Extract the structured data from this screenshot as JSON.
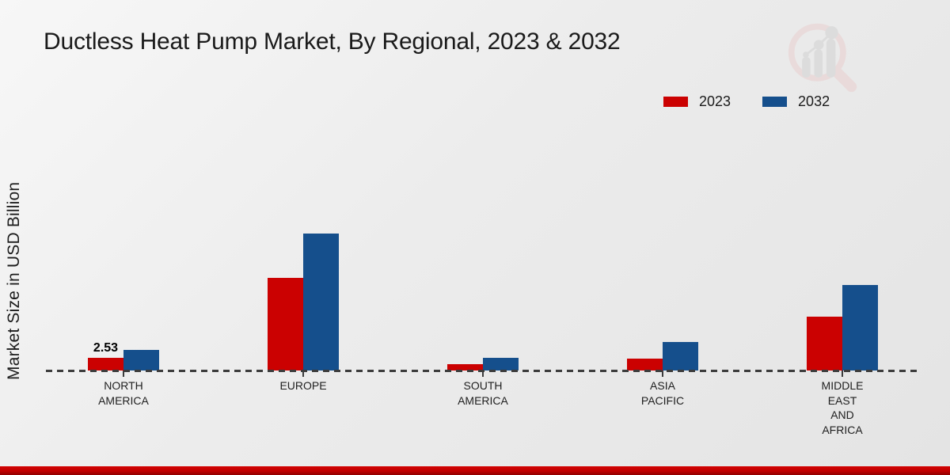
{
  "title": "Ductless Heat Pump Market, By Regional, 2023 & 2032",
  "y_axis_label": "Market Size in USD Billion",
  "legend": {
    "items": [
      {
        "label": "2023",
        "color": "#cb0101"
      },
      {
        "label": "2032",
        "color": "#154f8c"
      }
    ]
  },
  "colors": {
    "series_2023": "#cb0101",
    "series_2032": "#154f8c",
    "background": "#ececec",
    "footer_bar": "#c00000",
    "baseline": "#3c3c3c",
    "text": "#1b1b1b",
    "logo_ring": "#e9cfcf",
    "logo_bars": "#d2d2d2"
  },
  "chart_data": {
    "type": "bar",
    "title": "Ductless Heat Pump Market, By Regional, 2023 & 2032",
    "xlabel": "",
    "ylabel": "Market Size in USD Billion",
    "unit": "USD Billion",
    "categories": [
      "NORTH AMERICA",
      "EUROPE",
      "SOUTH AMERICA",
      "ASIA PACIFIC",
      "MIDDLE EAST AND AFRICA"
    ],
    "category_label_lines": [
      [
        "NORTH",
        "AMERICA"
      ],
      [
        "EUROPE"
      ],
      [
        "SOUTH",
        "AMERICA"
      ],
      [
        "ASIA",
        "PACIFIC"
      ],
      [
        "MIDDLE",
        "EAST",
        "AND",
        "AFRICA"
      ]
    ],
    "series": [
      {
        "name": "2023",
        "color": "#cb0101",
        "values": [
          2.53,
          18.5,
          1.3,
          2.4,
          10.8
        ]
      },
      {
        "name": "2032",
        "color": "#154f8c",
        "values": [
          4.1,
          27.3,
          2.5,
          5.7,
          17.1
        ]
      }
    ],
    "annotations": [
      {
        "series": "2023",
        "category": "NORTH AMERICA",
        "category_index": 0,
        "text": "2.53"
      }
    ],
    "ylim": [
      0,
      30
    ],
    "grid": false,
    "legend_position": "top-right",
    "baseline_style": "dashed"
  }
}
